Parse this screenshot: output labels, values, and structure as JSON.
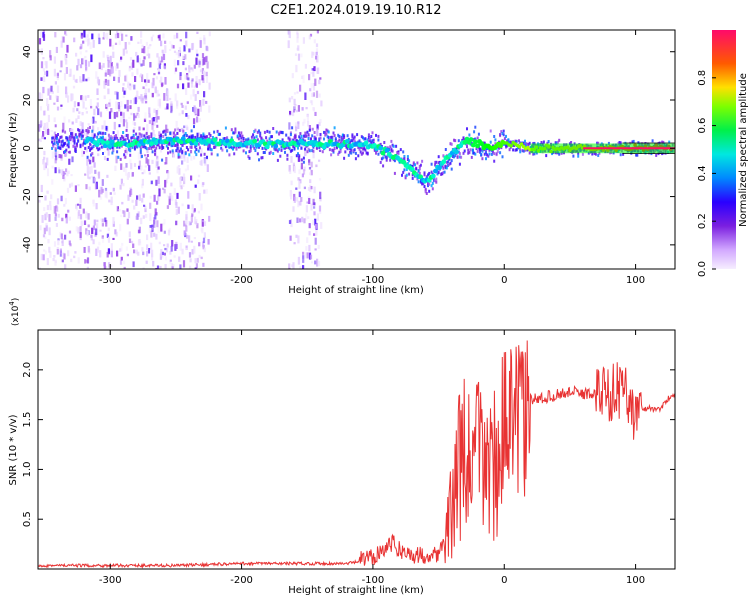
{
  "title": "C2E1.2024.019.19.10.R12",
  "chart_data": [
    {
      "type": "scatter",
      "name": "spectrogram",
      "xlabel": "Height of straight line (km)",
      "ylabel": "Frequency (Hz)",
      "xlim": [
        -355,
        130
      ],
      "ylim": [
        -50,
        49
      ],
      "xticks": [
        -300,
        -200,
        -100,
        0,
        100
      ],
      "yticks": [
        -40,
        -20,
        0,
        20,
        40
      ],
      "colorbar": {
        "label": "Normalized spectral amplitude",
        "range": [
          0,
          1
        ],
        "ticks": [
          0.0,
          0.2,
          0.4,
          0.6,
          0.8
        ],
        "colormap": [
          "#f2e6ff",
          "#c9a0ff",
          "#8a2be2",
          "#3300ff",
          "#00aaff",
          "#00ffcc",
          "#00ff00",
          "#c8ff00",
          "#ffcc00",
          "#ff4400",
          "#ff0066"
        ]
      },
      "ridge": {
        "x": [
          -320,
          -300,
          -250,
          -200,
          -150,
          -120,
          -100,
          -80,
          -60,
          -45,
          -30,
          -20,
          -10,
          0,
          20,
          60,
          100,
          130
        ],
        "y": [
          3,
          2,
          3,
          2,
          2,
          2,
          1,
          -4,
          -14,
          -5,
          3,
          2,
          0,
          2,
          0,
          0,
          0,
          0
        ]
      },
      "noise_bands": [
        [
          -355,
          -225
        ],
        [
          -165,
          -140
        ]
      ]
    },
    {
      "type": "line",
      "name": "snr",
      "xlabel": "Height of straight line (km)",
      "ylabel": "SNR (10 * v/v)",
      "y_multiplier": "(x10^4)",
      "xlim": [
        -355,
        130
      ],
      "ylim": [
        0,
        2.4
      ],
      "xticks": [
        -300,
        -200,
        -100,
        0,
        100
      ],
      "yticks": [
        0.5,
        1.0,
        1.5,
        2.0
      ],
      "color": "#e83333",
      "series": [
        {
          "x": [
            -355,
            -250,
            -200,
            -150,
            -120,
            -100,
            -95,
            -85,
            -75,
            -65,
            -50,
            -45,
            -40,
            -35,
            -30,
            -25,
            -20,
            -15,
            -10,
            -5,
            0,
            5,
            10,
            15,
            20,
            30,
            40,
            50,
            60,
            70,
            80,
            90,
            95,
            100,
            105,
            110,
            115,
            120,
            125,
            130
          ],
          "y": [
            0.02,
            0.02,
            0.04,
            0.04,
            0.04,
            0.08,
            0.15,
            0.22,
            0.12,
            0.1,
            0.12,
            0.25,
            0.7,
            1.1,
            1.2,
            1.1,
            1.3,
            1.2,
            1.1,
            1.2,
            1.55,
            1.5,
            1.6,
            1.55,
            1.7,
            1.72,
            1.75,
            1.78,
            1.76,
            1.76,
            1.78,
            1.8,
            1.75,
            1.5,
            1.6,
            1.62,
            1.6,
            1.62,
            1.72,
            1.74
          ]
        }
      ]
    }
  ]
}
